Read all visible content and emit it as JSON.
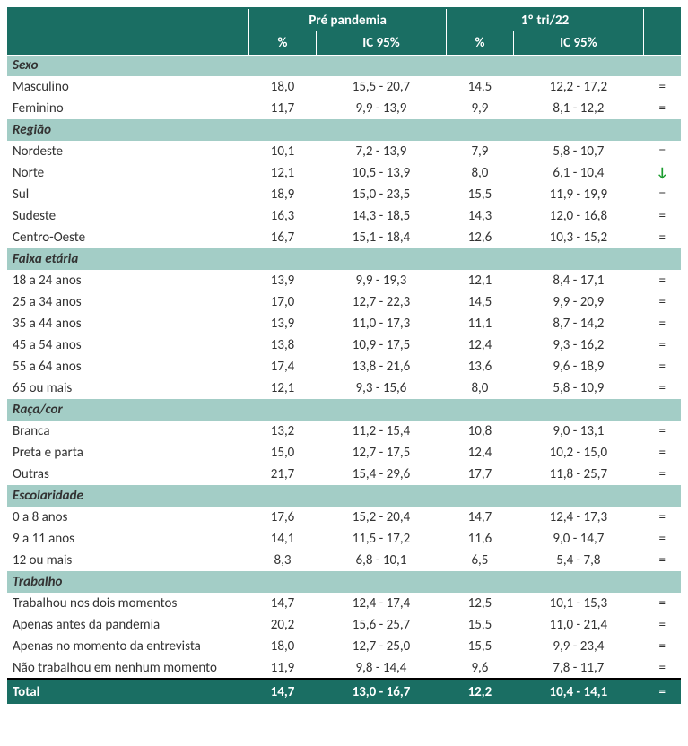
{
  "colors": {
    "teal_dark": "#1a6e63",
    "teal_light": "#a3cdc6",
    "white": "#ffffff",
    "text": "#333333",
    "arrow_green": "#1a9c2e"
  },
  "header": {
    "period1": "Pré pandemia",
    "period2": "1º tri/22",
    "pct": "%",
    "ic": "IC 95%"
  },
  "groups": [
    {
      "title": "Sexo",
      "rows": [
        {
          "label": "Masculino",
          "p1_pct": "18,0",
          "p1_ic": "15,5 - 20,7",
          "p2_pct": "14,5",
          "p2_ic": "12,2 - 17,2",
          "sym": "="
        },
        {
          "label": "Feminino",
          "p1_pct": "11,7",
          "p1_ic": "9,9 - 13,9",
          "p2_pct": "9,9",
          "p2_ic": "8,1 - 12,2",
          "sym": "="
        }
      ]
    },
    {
      "title": "Região",
      "rows": [
        {
          "label": "Nordeste",
          "p1_pct": "10,1",
          "p1_ic": "7,2 - 13,9",
          "p2_pct": "7,9",
          "p2_ic": "5,8 - 10,7",
          "sym": "="
        },
        {
          "label": "Norte",
          "p1_pct": "12,1",
          "p1_ic": "10,5 - 13,9",
          "p2_pct": "8,0",
          "p2_ic": "6,1 - 10,4",
          "sym": "↓",
          "sym_class": "down"
        },
        {
          "label": "Sul",
          "p1_pct": "18,9",
          "p1_ic": "15,0 - 23,5",
          "p2_pct": "15,5",
          "p2_ic": "11,9 - 19,9",
          "sym": "="
        },
        {
          "label": "Sudeste",
          "p1_pct": "16,3",
          "p1_ic": "14,3 - 18,5",
          "p2_pct": "14,3",
          "p2_ic": "12,0 - 16,8",
          "sym": "="
        },
        {
          "label": "Centro-Oeste",
          "p1_pct": "16,7",
          "p1_ic": "15,1 - 18,4",
          "p2_pct": "12,6",
          "p2_ic": "10,3 - 15,2",
          "sym": "="
        }
      ]
    },
    {
      "title": "Faixa etária",
      "rows": [
        {
          "label": "18 a 24 anos",
          "p1_pct": "13,9",
          "p1_ic": "9,9 - 19,3",
          "p2_pct": "12,1",
          "p2_ic": "8,4 - 17,1",
          "sym": "="
        },
        {
          "label": "25 a 34 anos",
          "p1_pct": "17,0",
          "p1_ic": "12,7 - 22,3",
          "p2_pct": "14,5",
          "p2_ic": "9,9 - 20,9",
          "sym": "="
        },
        {
          "label": "35 a 44 anos",
          "p1_pct": "13,9",
          "p1_ic": "11,0 - 17,3",
          "p2_pct": "11,1",
          "p2_ic": "8,7 - 14,2",
          "sym": "="
        },
        {
          "label": "45 a 54 anos",
          "p1_pct": "13,8",
          "p1_ic": "10,9 - 17,5",
          "p2_pct": "12,4",
          "p2_ic": "9,3 - 16,2",
          "sym": "="
        },
        {
          "label": "55 a 64 anos",
          "p1_pct": "17,4",
          "p1_ic": "13,8 - 21,6",
          "p2_pct": "13,6",
          "p2_ic": "9,6 - 18,9",
          "sym": "="
        },
        {
          "label": "65 ou mais",
          "p1_pct": "12,1",
          "p1_ic": "9,3 - 15,6",
          "p2_pct": "8,0",
          "p2_ic": "5,8 - 10,9",
          "sym": "="
        }
      ]
    },
    {
      "title": "Raça/cor",
      "rows": [
        {
          "label": "Branca",
          "p1_pct": "13,2",
          "p1_ic": "11,2 - 15,4",
          "p2_pct": "10,8",
          "p2_ic": "9,0 - 13,1",
          "sym": "="
        },
        {
          "label": "Preta e parta",
          "p1_pct": "15,0",
          "p1_ic": "12,7 - 17,5",
          "p2_pct": "12,4",
          "p2_ic": "10,2 - 15,0",
          "sym": "="
        },
        {
          "label": "Outras",
          "p1_pct": "21,7",
          "p1_ic": "15,4 - 29,6",
          "p2_pct": "17,7",
          "p2_ic": "11,8 - 25,7",
          "sym": "="
        }
      ]
    },
    {
      "title": "Escolaridade",
      "rows": [
        {
          "label": "0 a 8 anos",
          "p1_pct": "17,6",
          "p1_ic": "15,2 - 20,4",
          "p2_pct": "14,7",
          "p2_ic": "12,4 - 17,3",
          "sym": "="
        },
        {
          "label": "9 a 11 anos",
          "p1_pct": "14,1",
          "p1_ic": "11,5 - 17,2",
          "p2_pct": "11,6",
          "p2_ic": "9,0 - 14,7",
          "sym": "="
        },
        {
          "label": "12 ou mais",
          "p1_pct": "8,3",
          "p1_ic": "6,8 - 10,1",
          "p2_pct": "6,5",
          "p2_ic": "5,4 - 7,8",
          "sym": "="
        }
      ]
    },
    {
      "title": "Trabalho",
      "rows": [
        {
          "label": "Trabalhou nos dois momentos",
          "p1_pct": "14,7",
          "p1_ic": "12,4 - 17,4",
          "p2_pct": "12,5",
          "p2_ic": "10,1 - 15,3",
          "sym": "="
        },
        {
          "label": "Apenas antes da pandemia",
          "p1_pct": "20,2",
          "p1_ic": "15,6 - 25,7",
          "p2_pct": "15,5",
          "p2_ic": "11,0 - 21,4",
          "sym": "="
        },
        {
          "label": "Apenas no momento da entrevista",
          "p1_pct": "18,0",
          "p1_ic": "12,7 - 25,0",
          "p2_pct": "15,5",
          "p2_ic": "9,9  - 23,4",
          "sym": "="
        },
        {
          "label": "Não trabalhou em nenhum momento",
          "p1_pct": "11,9",
          "p1_ic": "9,8 - 14,4",
          "p2_pct": "9,6",
          "p2_ic": "7,8 - 11,7",
          "sym": "="
        }
      ]
    }
  ],
  "total": {
    "label": "Total",
    "p1_pct": "14,7",
    "p1_ic": "13,0 - 16,7",
    "p2_pct": "12,2",
    "p2_ic": "10,4 - 14,1",
    "sym": "="
  }
}
